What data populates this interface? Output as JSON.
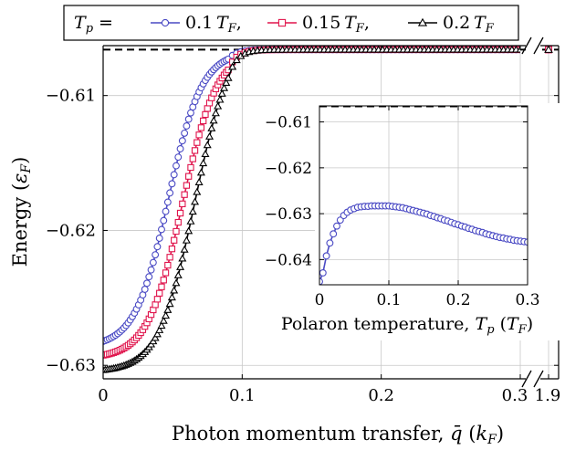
{
  "chart_data": [
    {
      "type": "line",
      "xlabel": "Photon momentum transfer, q̄ (k_F)",
      "xlabel_parts": {
        "main": "Photon momentum transfer, ",
        "var": "q̄",
        "unit_open": " (",
        "unit_var": "k",
        "unit_sub": "F",
        "unit_close": ")"
      },
      "ylabel": "Energy (ε_F)",
      "ylabel_parts": {
        "main": "Energy (",
        "var": "ε",
        "sub": "F",
        "close": ")"
      },
      "xlim": [
        0,
        0.3
      ],
      "ylim": [
        -0.631,
        -0.6063
      ],
      "x_ticks": [
        0,
        0.1,
        0.2,
        0.3
      ],
      "x_tick_labels": [
        "0",
        "0.1",
        "0.2",
        "0.3"
      ],
      "y_ticks": [
        -0.61,
        -0.62,
        -0.63
      ],
      "y_tick_labels": [
        "−0.61",
        "−0.62",
        "−0.63"
      ],
      "broken_axis": {
        "extra_tick_label": "1.9",
        "extra_tick_value": 1.9
      },
      "asymptote": {
        "y": -0.6066,
        "style": "dashed",
        "color": "#000000"
      },
      "grid": true,
      "legend": {
        "placement": "top",
        "prefix_var": "T",
        "prefix_sub": "p",
        "prefix_eq": " =",
        "entries": [
          {
            "coef": "0.1",
            "var": "T",
            "sub": "F",
            "suffix": ","
          },
          {
            "coef": "0.15",
            "var": "T",
            "sub": "F",
            "suffix": ","
          },
          {
            "coef": "0.2",
            "var": "T",
            "sub": "F",
            "suffix": ""
          }
        ]
      },
      "series": [
        {
          "name": "T_p = 0.1 T_F",
          "color": "#4a4ac4",
          "marker": "circle",
          "low": -0.62822,
          "high": -0.6066,
          "mid": 0.047,
          "width": 0.012,
          "q_turn": 0.09,
          "plateau_start": -0.6073
        },
        {
          "name": "T_p = 0.15 T_F",
          "color": "#e0144c",
          "marker": "square",
          "low": -0.62925,
          "high": -0.6066,
          "mid": 0.057,
          "width": 0.0125,
          "q_turn": 0.09,
          "plateau_start": -0.6081
        },
        {
          "name": "T_p = 0.2 T_F",
          "color": "#000000",
          "marker": "triangle",
          "low": -0.63035,
          "high": -0.6066,
          "mid": 0.066,
          "width": 0.013,
          "q_turn": 0.09,
          "plateau_start": -0.6087
        }
      ],
      "break_point": {
        "x": 1.9,
        "y": -0.6066
      }
    },
    {
      "type": "line",
      "inset": true,
      "xlabel": "Polaron temperature, T_p (T_F)",
      "xlabel_parts": {
        "main": "Polaron temperature, ",
        "var": "T",
        "sub": "p",
        "unit_open": " (",
        "unit_var": "T",
        "unit_sub": "F",
        "unit_close": ")"
      },
      "ylabel": "",
      "xlim": [
        0,
        0.3
      ],
      "ylim": [
        -0.6455,
        -0.6065
      ],
      "x_ticks": [
        0,
        0.1,
        0.2,
        0.3
      ],
      "x_tick_labels": [
        "0",
        "0.1",
        "0.2",
        "0.3"
      ],
      "y_ticks": [
        -0.61,
        -0.62,
        -0.63,
        -0.64
      ],
      "y_tick_labels": [
        "−0.61",
        "−0.62",
        "−0.63",
        "−0.64"
      ],
      "asymptote": {
        "y": -0.6066,
        "style": "dashed",
        "color": "#000000"
      },
      "grid": true,
      "series": [
        {
          "name": "",
          "color": "#4a4ac4",
          "marker": "circle",
          "x": [
            0.0,
            0.005,
            0.01,
            0.015,
            0.02,
            0.025,
            0.03,
            0.035,
            0.04,
            0.045,
            0.05,
            0.055,
            0.06,
            0.065,
            0.07,
            0.075,
            0.08,
            0.085,
            0.09,
            0.095,
            0.1,
            0.105,
            0.11,
            0.115,
            0.12,
            0.125,
            0.13,
            0.135,
            0.14,
            0.145,
            0.15,
            0.155,
            0.16,
            0.165,
            0.17,
            0.175,
            0.18,
            0.185,
            0.19,
            0.195,
            0.2,
            0.205,
            0.21,
            0.215,
            0.22,
            0.225,
            0.23,
            0.235,
            0.24,
            0.245,
            0.25,
            0.255,
            0.26,
            0.265,
            0.27,
            0.275,
            0.28,
            0.285,
            0.29,
            0.295,
            0.3
          ],
          "y": [
            -0.6448,
            -0.6429,
            -0.6392,
            -0.6364,
            -0.6344,
            -0.6327,
            -0.6314,
            -0.6304,
            -0.6297,
            -0.6292,
            -0.6289,
            -0.6286,
            -0.6285,
            -0.6284,
            -0.6284,
            -0.6283,
            -0.6283,
            -0.6283,
            -0.6283,
            -0.6283,
            -0.6283,
            -0.6284,
            -0.6285,
            -0.6286,
            -0.6287,
            -0.6289,
            -0.6291,
            -0.6293,
            -0.6295,
            -0.6297,
            -0.6299,
            -0.6301,
            -0.6304,
            -0.6306,
            -0.6309,
            -0.6311,
            -0.6314,
            -0.6316,
            -0.6319,
            -0.6322,
            -0.6324,
            -0.6327,
            -0.6329,
            -0.6332,
            -0.6334,
            -0.6337,
            -0.6339,
            -0.6341,
            -0.6344,
            -0.6346,
            -0.6348,
            -0.635,
            -0.6352,
            -0.6353,
            -0.6355,
            -0.6356,
            -0.6358,
            -0.6359,
            -0.636,
            -0.6361,
            -0.6362
          ]
        }
      ]
    }
  ]
}
